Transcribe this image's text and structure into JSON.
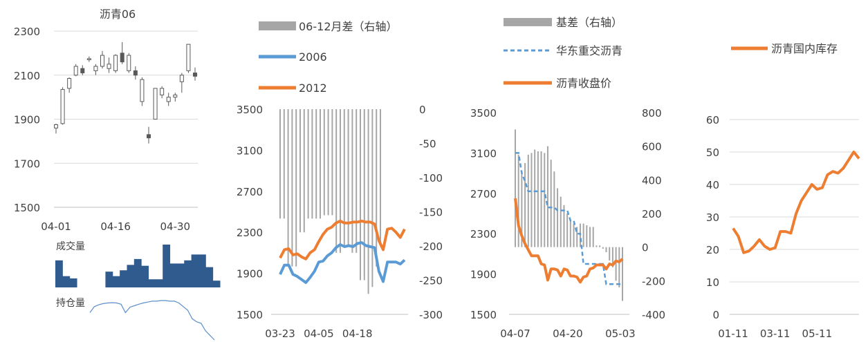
{
  "colors": {
    "axis_text": "#404040",
    "grid": "#d9d9d9",
    "candle": "#595959",
    "volume_bar": "#2f5b8e",
    "open_interest": "#5b8fc9",
    "spread_bar": "#a6a6a6",
    "blue": "#5b9bd5",
    "orange": "#ed7d31"
  },
  "chart_data": [
    {
      "id": "bitumen-candles",
      "type": "candlestick",
      "title": "沥青06",
      "ylim": [
        1500,
        2300
      ],
      "yticks": [
        1500,
        1700,
        1900,
        2100,
        2300
      ],
      "xtick_labels": [
        {
          "index": 0,
          "label": "04-01"
        },
        {
          "index": 9,
          "label": "04-16"
        },
        {
          "index": 18,
          "label": "04-30"
        }
      ],
      "ohlc": [
        {
          "o": 1860,
          "h": 1880,
          "l": 1835,
          "c": 1875
        },
        {
          "o": 1880,
          "h": 2045,
          "l": 1875,
          "c": 2035
        },
        {
          "o": 2040,
          "h": 2090,
          "l": 2020,
          "c": 2085
        },
        {
          "o": 2100,
          "h": 2150,
          "l": 2095,
          "c": 2140
        },
        {
          "o": 2130,
          "h": 2145,
          "l": 2100,
          "c": 2110
        },
        {
          "o": 2170,
          "h": 2185,
          "l": 2160,
          "c": 2175
        },
        {
          "o": 2120,
          "h": 2150,
          "l": 2100,
          "c": 2140
        },
        {
          "o": 2140,
          "h": 2210,
          "l": 2130,
          "c": 2190
        },
        {
          "o": 2130,
          "h": 2180,
          "l": 2110,
          "c": 2150
        },
        {
          "o": 2120,
          "h": 2195,
          "l": 2110,
          "c": 2190
        },
        {
          "o": 2200,
          "h": 2250,
          "l": 2150,
          "c": 2160
        },
        {
          "o": 2120,
          "h": 2200,
          "l": 2110,
          "c": 2190
        },
        {
          "o": 2120,
          "h": 2140,
          "l": 2080,
          "c": 2100
        },
        {
          "o": 1980,
          "h": 2090,
          "l": 1960,
          "c": 2080
        },
        {
          "o": 1830,
          "h": 1865,
          "l": 1790,
          "c": 1815
        },
        {
          "o": 1900,
          "h": 2040,
          "l": 1900,
          "c": 2040
        },
        {
          "o": 2010,
          "h": 2050,
          "l": 1995,
          "c": 2040
        },
        {
          "o": 1980,
          "h": 2020,
          "l": 1960,
          "c": 2000
        },
        {
          "o": 2000,
          "h": 2020,
          "l": 1980,
          "c": 2010
        },
        {
          "o": 2070,
          "h": 2110,
          "l": 2020,
          "c": 2100
        },
        {
          "o": 2120,
          "h": 2240,
          "l": 2110,
          "c": 2240
        },
        {
          "o": 2110,
          "h": 2135,
          "l": 2075,
          "c": 2095
        }
      ]
    },
    {
      "id": "volume",
      "type": "bar",
      "title": "成交量",
      "values": [
        6,
        2.5,
        2,
        0,
        0,
        0,
        0,
        3.5,
        2.5,
        3.8,
        5,
        6.3,
        4.8,
        1.8,
        1.8,
        9.5,
        5.3,
        5.3,
        6,
        7.3,
        7.3,
        4.5,
        1.5
      ]
    },
    {
      "id": "open-interest",
      "type": "line",
      "title": "持仓量",
      "values": [
        40,
        60,
        66,
        70,
        72,
        73,
        72,
        68,
        40,
        58,
        63,
        68,
        72,
        75,
        78,
        78,
        80,
        80,
        78,
        78,
        72,
        60,
        48,
        20,
        10,
        5,
        -20,
        -35,
        -50
      ]
    },
    {
      "id": "spread-chart",
      "type": "bar+line",
      "legend": [
        "06-12月差（右轴）",
        "2006",
        "2012"
      ],
      "ylim": [
        1500,
        3500
      ],
      "yticks": [
        1500,
        1900,
        2300,
        2700,
        3100,
        3500
      ],
      "y2lim": [
        -300,
        0
      ],
      "y2ticks": [
        -300,
        -250,
        -200,
        -150,
        -100,
        -50,
        0
      ],
      "xtick_labels": [
        {
          "index": 0,
          "label": "03-23"
        },
        {
          "index": 9,
          "label": "04-05"
        },
        {
          "index": 18,
          "label": "04-18"
        }
      ],
      "spread": [
        -160,
        -160,
        -230,
        -230,
        -230,
        -180,
        -180,
        -160,
        -160,
        -160,
        -160,
        -155,
        -155,
        -155,
        -210,
        -210,
        -200,
        -200,
        -210,
        -210,
        -250,
        -250,
        -270,
        -260,
        -230,
        -200
      ],
      "series": [
        {
          "name": "2006",
          "values": [
            1890,
            1980,
            1980,
            1890,
            1870,
            1840,
            1810,
            1860,
            1920,
            2010,
            2020,
            2070,
            2100,
            2150,
            2180,
            2160,
            2170,
            2160,
            2190,
            2200,
            2170,
            2160,
            2150,
            1920,
            1820,
            2010,
            2010,
            2010,
            1990,
            2030
          ]
        },
        {
          "name": "2012",
          "values": [
            2050,
            2130,
            2140,
            2080,
            2090,
            2060,
            2040,
            2100,
            2130,
            2210,
            2280,
            2330,
            2350,
            2390,
            2410,
            2390,
            2390,
            2400,
            2400,
            2410,
            2400,
            2400,
            2380,
            2220,
            2130,
            2330,
            2340,
            2300,
            2250,
            2330
          ]
        }
      ]
    },
    {
      "id": "basis-chart",
      "type": "bar+line",
      "legend": [
        "基差（右轴）",
        "华东重交沥青",
        "沥青收盘价"
      ],
      "ylim": [
        1500,
        3500
      ],
      "yticks": [
        1500,
        1900,
        2300,
        2700,
        3100,
        3500
      ],
      "y2lim": [
        -400,
        800
      ],
      "y2ticks": [
        -400,
        -200,
        0,
        200,
        400,
        600,
        800
      ],
      "xtick_labels": [
        {
          "index": 0,
          "label": "04-07"
        },
        {
          "index": 9,
          "label": "04-20"
        },
        {
          "index": 18,
          "label": "05-03"
        }
      ],
      "basis": [
        700,
        550,
        450,
        500,
        550,
        560,
        580,
        570,
        570,
        560,
        600,
        520,
        450,
        350,
        300,
        250,
        200,
        160,
        140,
        120,
        140,
        140,
        130,
        120,
        120,
        10,
        10,
        -10,
        -30,
        -80,
        -120,
        -200,
        -240,
        -320
      ],
      "series": [
        {
          "name": "华东重交沥青",
          "values": [
            3100,
            3100,
            2900,
            2820,
            2720,
            2720,
            2720,
            2720,
            2720,
            2720,
            2560,
            2560,
            2560,
            2530,
            2530,
            2530,
            2530,
            2430,
            2430,
            2300,
            2300,
            2000,
            2000,
            2000,
            2000,
            2000,
            2000,
            2000,
            1800,
            1800,
            1800,
            1800,
            1800,
            1800
          ]
        },
        {
          "name": "沥青收盘价",
          "values": [
            2650,
            2380,
            2280,
            2200,
            2140,
            2080,
            2080,
            2080,
            2000,
            1990,
            1840,
            1950,
            1950,
            1940,
            1880,
            1950,
            1940,
            1880,
            1880,
            1870,
            1820,
            1870,
            1880,
            1950,
            1960,
            1990,
            1990,
            1990,
            1950,
            2000,
            1990,
            2030,
            2020,
            2050
          ]
        }
      ]
    },
    {
      "id": "inventory-chart",
      "type": "line",
      "legend": [
        "沥青国内库存"
      ],
      "ylim": [
        0,
        60
      ],
      "yticks": [
        0,
        10,
        20,
        30,
        40,
        50,
        60
      ],
      "xtick_labels": [
        {
          "index": 0,
          "label": "01-11"
        },
        {
          "index": 8,
          "label": "03-11"
        },
        {
          "index": 16,
          "label": "05-11"
        }
      ],
      "series": [
        {
          "name": "沥青国内库存",
          "values": [
            26.5,
            24,
            19,
            19.5,
            21,
            23,
            21,
            20,
            20.5,
            25.5,
            25.5,
            25,
            31,
            35,
            37.5,
            40,
            38.5,
            39,
            43,
            44,
            43.5,
            45,
            47.5,
            50,
            48
          ]
        }
      ]
    }
  ]
}
